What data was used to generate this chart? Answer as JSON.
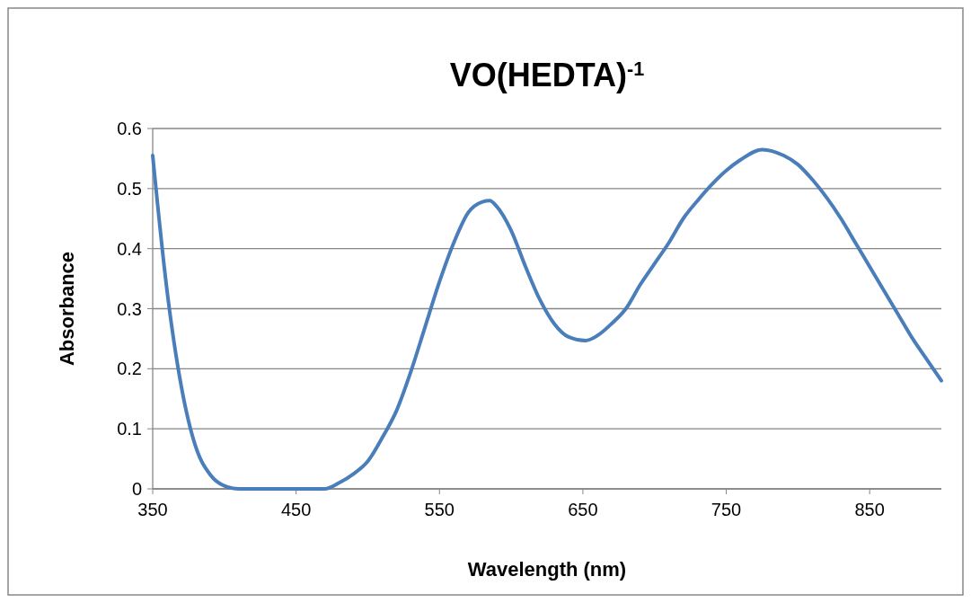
{
  "chart_data": {
    "type": "line",
    "title": "VO(HEDTA)$^{-1}$",
    "xlabel": "Wavelength (nm)",
    "ylabel": "Absorbance",
    "xlim": [
      350,
      900
    ],
    "xticks": [
      350,
      450,
      550,
      650,
      750,
      850
    ],
    "ylim": [
      0,
      0.6
    ],
    "yticks": [
      0,
      0.1,
      0.2,
      0.3,
      0.4,
      0.5,
      0.6
    ],
    "grid": "y",
    "marker": "none",
    "line_style": "solid",
    "series": [
      {
        "color": "#4a7ebb",
        "x": [
          350,
          360,
          370,
          380,
          390,
          400,
          410,
          420,
          440,
          460,
          470,
          480,
          490,
          500,
          510,
          520,
          530,
          540,
          550,
          560,
          570,
          580,
          585,
          590,
          600,
          610,
          620,
          630,
          640,
          652,
          660,
          670,
          680,
          690,
          700,
          710,
          720,
          730,
          740,
          750,
          760,
          775,
          790,
          800,
          810,
          820,
          830,
          840,
          850,
          860,
          870,
          880,
          890,
          900
        ],
        "values": [
          0.555,
          0.33,
          0.17,
          0.07,
          0.024,
          0.005,
          0,
          0,
          0,
          0,
          0,
          0.01,
          0.025,
          0.046,
          0.085,
          0.13,
          0.195,
          0.27,
          0.345,
          0.41,
          0.46,
          0.478,
          0.48,
          0.47,
          0.43,
          0.37,
          0.315,
          0.275,
          0.253,
          0.247,
          0.255,
          0.275,
          0.3,
          0.34,
          0.375,
          0.41,
          0.45,
          0.48,
          0.507,
          0.53,
          0.548,
          0.565,
          0.555,
          0.54,
          0.515,
          0.485,
          0.45,
          0.41,
          0.37,
          0.33,
          0.29,
          0.25,
          0.215,
          0.18
        ]
      }
    ]
  }
}
